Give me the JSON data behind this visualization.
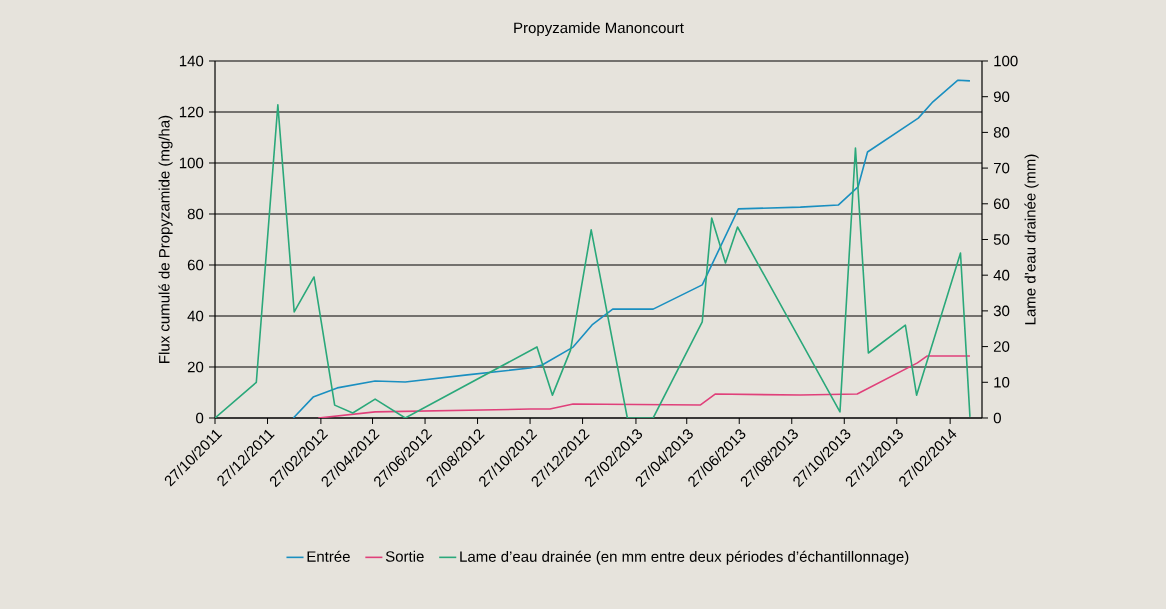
{
  "chart_data": {
    "type": "line",
    "title": "Propyzamide Manoncourt",
    "ylabel": "Flux cumulé de Propyzamide (mg/ha)",
    "y2label": "Lame d’eau drainée (mm)",
    "series": [
      {
        "name": "Entrée",
        "color": "#1a8fc0",
        "x": [
          "2012-01-26",
          "2012-02-18",
          "2012-03-17",
          "2012-04-30",
          "2012-06-04",
          "2012-08-15",
          "2012-10-27",
          "2012-11-10",
          "2012-12-16",
          "2013-01-07",
          "2013-01-31",
          "2013-03-19",
          "2013-05-15",
          "2013-06-26",
          "2013-09-06",
          "2013-10-20",
          "2013-11-12",
          "2013-11-23",
          "2014-01-21",
          "2014-02-07",
          "2014-03-08",
          "2014-03-22"
        ],
        "values": [
          0,
          8.2,
          11.8,
          14.5,
          14.1,
          16.9,
          19.6,
          20.8,
          27.8,
          36.5,
          42.7,
          42.7,
          52.2,
          82,
          82.7,
          83.5,
          90.6,
          104.3,
          117.6,
          124,
          132.5,
          132.2
        ]
      },
      {
        "name": "Sortie",
        "color": "#e0407a",
        "x": [
          "2012-02-24",
          "2012-04-30",
          "2012-10-27",
          "2012-11-19",
          "2012-12-16",
          "2013-05-13",
          "2013-05-30",
          "2013-09-06",
          "2013-11-11",
          "2014-01-20",
          "2014-01-31",
          "2014-03-22"
        ],
        "values": [
          0,
          2.4,
          3.5,
          3.5,
          5.5,
          5.1,
          9.4,
          9.0,
          9.4,
          21.6,
          24.3,
          24.3
        ]
      },
      {
        "name": "Lame d’eau drainée (en mm entre deux périodes d’échantillonnage)",
        "color": "#2aa87a",
        "axis": "y2",
        "x": [
          "2011-10-27",
          "2011-12-14",
          "2012-01-08",
          "2012-01-27",
          "2012-02-19",
          "2012-03-14",
          "2012-04-04",
          "2012-04-30",
          "2012-06-04",
          "2012-11-04",
          "2012-11-22",
          "2012-12-13",
          "2013-01-06",
          "2013-02-17",
          "2013-03-19",
          "2013-05-15",
          "2013-05-26",
          "2013-06-11",
          "2013-06-25",
          "2013-10-22",
          "2013-11-09",
          "2013-11-24",
          "2014-01-06",
          "2014-01-19",
          "2014-03-11",
          "2014-03-22"
        ],
        "values": [
          0,
          10,
          87.7,
          29.7,
          39.5,
          3.6,
          1.4,
          5.3,
          0,
          19.9,
          6.4,
          19,
          52.7,
          0,
          0,
          26.9,
          56,
          43.4,
          53.5,
          1.7,
          75.6,
          18.2,
          26,
          6.4,
          46.2,
          0.3
        ]
      }
    ],
    "xlim": [
      "2011-10-27",
      "2014-04-05"
    ],
    "xticks": [
      {
        "value": "2011-10-27",
        "label": "27/10/2011"
      },
      {
        "value": "2011-12-27",
        "label": "27/12/2011"
      },
      {
        "value": "2012-02-27",
        "label": "27/02/2012"
      },
      {
        "value": "2012-04-27",
        "label": "27/04/2012"
      },
      {
        "value": "2012-06-27",
        "label": "27/06/2012"
      },
      {
        "value": "2012-08-27",
        "label": "27/08/2012"
      },
      {
        "value": "2012-10-27",
        "label": "27/10/2012"
      },
      {
        "value": "2012-12-27",
        "label": "27/12/2012"
      },
      {
        "value": "2013-02-27",
        "label": "27/02/2013"
      },
      {
        "value": "2013-04-27",
        "label": "27/04/2013"
      },
      {
        "value": "2013-06-27",
        "label": "27/06/2013"
      },
      {
        "value": "2013-08-27",
        "label": "27/08/2013"
      },
      {
        "value": "2013-10-27",
        "label": "27/10/2013"
      },
      {
        "value": "2013-12-27",
        "label": "27/12/2013"
      },
      {
        "value": "2014-02-27",
        "label": "27/02/2014"
      }
    ],
    "ylim": [
      0,
      140
    ],
    "yticks": [
      0,
      20,
      40,
      60,
      80,
      100,
      120,
      140
    ],
    "y2lim": [
      0,
      100
    ],
    "y2ticks": [
      0,
      10,
      20,
      30,
      40,
      50,
      60,
      70,
      80,
      90,
      100
    ],
    "grid": "y",
    "legend": "bottom",
    "marker": "none",
    "line_style": "solid"
  }
}
